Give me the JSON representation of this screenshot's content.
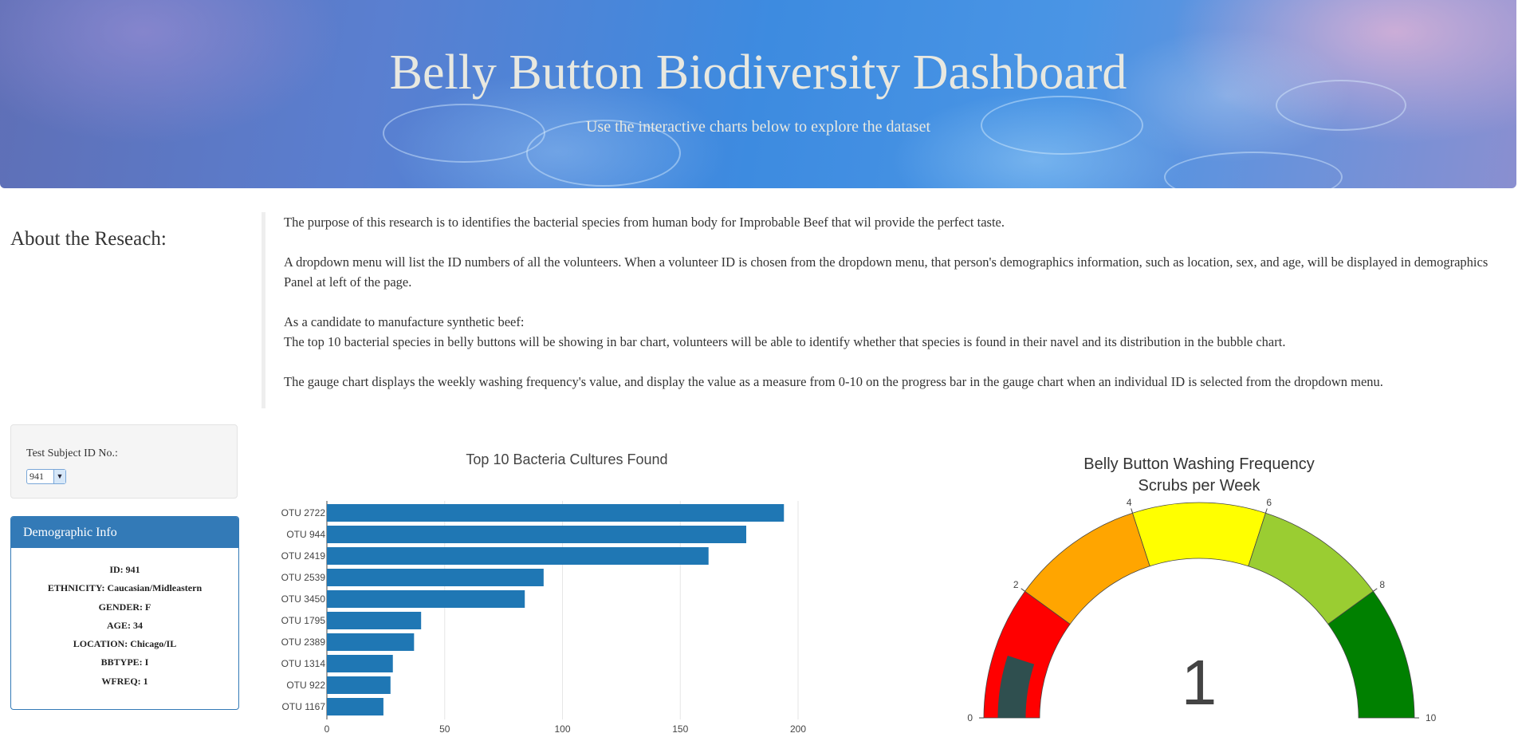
{
  "header": {
    "title": "Belly Button Biodiversity Dashboard",
    "subtitle": "Use the interactive charts below to explore the dataset"
  },
  "about": {
    "title": "About the Reseach:",
    "p1": "The purpose of this research is to identifies the bacterial species from human body for Improbable Beef that wil provide the perfect taste.",
    "p2": "A dropdown menu will list the ID numbers of all the volunteers. When a volunteer ID is chosen from the dropdown menu, that person's demographics information, such as location, sex, and age, will be displayed in demographics Panel at left of the page.",
    "p3a": "As a candidate to manufacture synthetic beef:",
    "p3b": "The top 10 bacterial species in belly buttons will be showing in bar chart, volunteers will be able to identify whether that species is found in their navel and its distribution in the bubble chart.",
    "p4": "The gauge chart displays the weekly washing frequency's value, and display the value as a measure from 0-10 on the progress bar in the gauge chart when an individual ID is selected from the dropdown menu."
  },
  "selector": {
    "label": "Test Subject ID No.:",
    "value": "941"
  },
  "demographics": {
    "title": "Demographic Info",
    "id": "ID: 941",
    "ethnicity": "ETHNICITY: Caucasian/Midleastern",
    "gender": "GENDER: F",
    "age": "AGE: 34",
    "location": "LOCATION: Chicago/IL",
    "bbtype": "BBTYPE: I",
    "wfreq": "WFREQ: 1"
  },
  "chart_data": [
    {
      "type": "bar",
      "orientation": "horizontal",
      "title": "Top 10 Bacteria Cultures Found",
      "categories": [
        "OTU 2722",
        "OTU 944",
        "OTU 2419",
        "OTU 2539",
        "OTU 3450",
        "OTU 1795",
        "OTU 2389",
        "OTU 1314",
        "OTU 922",
        "OTU 1167"
      ],
      "values": [
        194,
        178,
        162,
        92,
        84,
        40,
        37,
        28,
        27,
        24
      ],
      "xlim": [
        0,
        200
      ],
      "xticks": [
        0,
        50,
        100,
        150,
        200
      ],
      "color": "#1f77b4",
      "grid": true
    },
    {
      "type": "gauge",
      "title": "Belly Button Washing Frequency",
      "subtitle": "Scrubs per Week",
      "value": 1,
      "range": [
        0,
        10
      ],
      "ticks": [
        0,
        2,
        4,
        6,
        8,
        10
      ],
      "bar_color": "#2f4f4f",
      "steps": [
        {
          "range": [
            0,
            2
          ],
          "color": "#ff0000"
        },
        {
          "range": [
            2,
            4
          ],
          "color": "#ffa500"
        },
        {
          "range": [
            4,
            6
          ],
          "color": "#ffff00"
        },
        {
          "range": [
            6,
            8
          ],
          "color": "#9acd32"
        },
        {
          "range": [
            8,
            10
          ],
          "color": "#008000"
        }
      ]
    }
  ]
}
